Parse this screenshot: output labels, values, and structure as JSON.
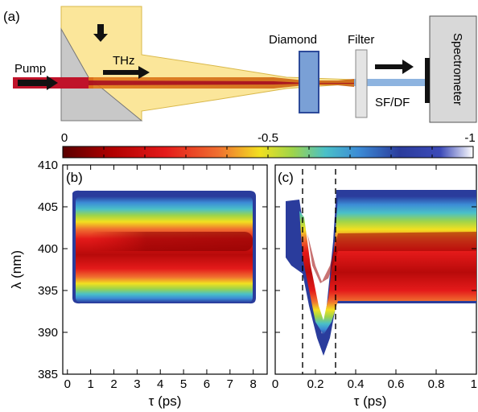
{
  "setup": {
    "panel_label": "(a)",
    "labels": {
      "pump": "Pump",
      "thz": "THz",
      "diamond": "Diamond",
      "filter": "Filter",
      "spectrometer": "Spectrometer",
      "sf_df": "SF/DF"
    }
  },
  "colorbar": {
    "tick_labels": [
      "0",
      "-0.5",
      "-1"
    ],
    "stops": [
      "#5a0000",
      "#b00000",
      "#e41a1a",
      "#f07030",
      "#f2e020",
      "#9ed44a",
      "#4ac0c8",
      "#3c8cd6",
      "#2a3c9c",
      "#3c4ab8",
      "#ffffff"
    ]
  },
  "panel_b": {
    "label": "(b)",
    "ylabel": "λ (nm)",
    "xlabel": "τ (ps)",
    "y_ticks": [
      "410",
      "405",
      "400",
      "395",
      "390",
      "385"
    ],
    "x_ticks": [
      "0",
      "1",
      "2",
      "3",
      "4",
      "5",
      "6",
      "7",
      "8"
    ]
  },
  "panel_c": {
    "label": "(c)",
    "xlabel": "τ (ps)",
    "x_ticks": [
      "0",
      "0.2",
      "0.4",
      "0.6",
      "0.8",
      "1"
    ]
  },
  "chart_data": [
    {
      "type": "heatmap",
      "xlabel": "τ (ps)",
      "ylabel": "λ (nm)",
      "xlim": [
        -0.2,
        8.6
      ],
      "ylim": [
        385,
        410
      ],
      "band_center_nm": 400.5,
      "band_lower_edge_nm": 394,
      "band_upper_edge_nm": 407,
      "tau_start_ps": 0.1,
      "tau_end_ps": 8.4
    },
    {
      "type": "heatmap",
      "xlabel": "τ (ps)",
      "xlim": [
        0,
        1
      ],
      "ylim": [
        385,
        410
      ],
      "dashed_lines_ps": [
        0.13,
        0.3
      ],
      "dip_min_nm": 391,
      "dip_center_ps": 0.22,
      "band_lower_edge_nm": 394,
      "band_upper_edge_nm": 407
    }
  ]
}
